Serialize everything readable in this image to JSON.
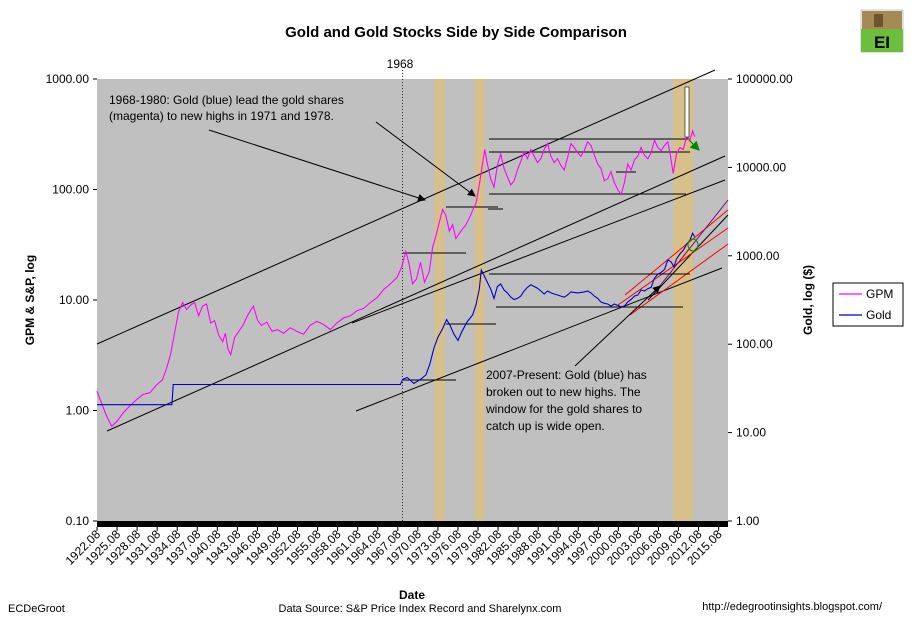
{
  "chart_data": {
    "type": "line",
    "title": "Gold and Gold Stocks Side by Side Comparison",
    "xlabel": "Date",
    "ylabel_left": "GPM & S&P, log",
    "ylabel_right": "Gold, log ($)",
    "x_range": [
      1922.6,
      2017.0
    ],
    "ylim_left": [
      0.1,
      1000
    ],
    "ylim_right": [
      1,
      100000
    ],
    "log_scale": true,
    "y_ticks_left": [
      "1000.00",
      "100.00",
      "10.00",
      "1.00",
      "0.10"
    ],
    "y_ticks_right": [
      "100000.00",
      "10000.00",
      "1000.00",
      "100.00",
      "10.00",
      "1.00"
    ],
    "x_ticks": [
      "1922.08",
      "1925.08",
      "1928.08",
      "1931.08",
      "1934.08",
      "1937.08",
      "1940.08",
      "1943.08",
      "1946.08",
      "1949.08",
      "1952.08",
      "1955.08",
      "1958.08",
      "1961.08",
      "1964.08",
      "1967.08",
      "1970.08",
      "1973.08",
      "1976.08",
      "1979.08",
      "1982.08",
      "1985.08",
      "1988.08",
      "1991.08",
      "1994.08",
      "1997.08",
      "2000.08",
      "2003.08",
      "2006.08",
      "2009.08",
      "2012.08",
      "2015.08"
    ],
    "vline_label": "1968",
    "legend_placement": "right",
    "series": [
      {
        "name": "GPM",
        "color": "#ff00ff",
        "axis": "left",
        "points": [
          [
            1922.6,
            1.5
          ],
          [
            1923.2,
            1.2
          ],
          [
            1924.0,
            0.9
          ],
          [
            1924.8,
            0.72
          ],
          [
            1925.6,
            0.8
          ],
          [
            1926.5,
            0.95
          ],
          [
            1927.5,
            1.1
          ],
          [
            1928.5,
            1.25
          ],
          [
            1929.5,
            1.4
          ],
          [
            1930.5,
            1.45
          ],
          [
            1931.5,
            1.7
          ],
          [
            1932.4,
            1.9
          ],
          [
            1933.0,
            2.4
          ],
          [
            1933.6,
            3.2
          ],
          [
            1934.2,
            5.0
          ],
          [
            1934.8,
            7.8
          ],
          [
            1935.4,
            9.5
          ],
          [
            1936.0,
            8.2
          ],
          [
            1936.6,
            9.0
          ],
          [
            1937.2,
            9.5
          ],
          [
            1937.8,
            7.2
          ],
          [
            1938.4,
            8.8
          ],
          [
            1939.0,
            9.2
          ],
          [
            1939.6,
            6.2
          ],
          [
            1940.2,
            6.5
          ],
          [
            1940.8,
            4.8
          ],
          [
            1941.4,
            4.2
          ],
          [
            1941.8,
            5.0
          ],
          [
            1942.2,
            3.6
          ],
          [
            1942.6,
            3.2
          ],
          [
            1943.2,
            4.6
          ],
          [
            1943.8,
            5.2
          ],
          [
            1944.5,
            6.0
          ],
          [
            1945.2,
            7.4
          ],
          [
            1946.0,
            8.8
          ],
          [
            1946.6,
            6.6
          ],
          [
            1947.2,
            5.9
          ],
          [
            1948.0,
            6.3
          ],
          [
            1948.8,
            5.2
          ],
          [
            1949.6,
            5.4
          ],
          [
            1950.5,
            5.0
          ],
          [
            1951.5,
            5.6
          ],
          [
            1952.5,
            5.2
          ],
          [
            1953.5,
            4.9
          ],
          [
            1954.5,
            5.9
          ],
          [
            1955.5,
            6.4
          ],
          [
            1956.5,
            6.0
          ],
          [
            1957.5,
            5.4
          ],
          [
            1958.5,
            6.2
          ],
          [
            1959.5,
            6.9
          ],
          [
            1960.5,
            7.2
          ],
          [
            1961.5,
            8.0
          ],
          [
            1962.5,
            8.4
          ],
          [
            1963.5,
            9.5
          ],
          [
            1964.5,
            10.5
          ],
          [
            1965.5,
            12.5
          ],
          [
            1966.5,
            14.0
          ],
          [
            1967.5,
            16.0
          ],
          [
            1968.2,
            20.0
          ],
          [
            1968.8,
            27.5
          ],
          [
            1969.3,
            21.0
          ],
          [
            1969.8,
            14.0
          ],
          [
            1970.4,
            15.5
          ],
          [
            1971.0,
            22.0
          ],
          [
            1971.6,
            14.5
          ],
          [
            1972.3,
            18.0
          ],
          [
            1972.8,
            30.0
          ],
          [
            1973.3,
            38.0
          ],
          [
            1973.8,
            50.0
          ],
          [
            1974.3,
            66.0
          ],
          [
            1974.8,
            58.0
          ],
          [
            1975.3,
            42.0
          ],
          [
            1975.8,
            48.0
          ],
          [
            1976.3,
            36.0
          ],
          [
            1976.8,
            40.0
          ],
          [
            1977.3,
            44.0
          ],
          [
            1977.8,
            48.0
          ],
          [
            1978.3,
            55.0
          ],
          [
            1978.8,
            65.0
          ],
          [
            1979.3,
            75.0
          ],
          [
            1979.8,
            110.0
          ],
          [
            1980.2,
            160.0
          ],
          [
            1980.6,
            230.0
          ],
          [
            1981.0,
            170.0
          ],
          [
            1981.5,
            125.0
          ],
          [
            1982.0,
            105.0
          ],
          [
            1982.5,
            165.0
          ],
          [
            1983.0,
            210.0
          ],
          [
            1983.5,
            155.0
          ],
          [
            1984.0,
            130.0
          ],
          [
            1984.5,
            110.0
          ],
          [
            1985.0,
            120.0
          ],
          [
            1985.5,
            150.0
          ],
          [
            1986.0,
            180.0
          ],
          [
            1986.5,
            220.0
          ],
          [
            1987.0,
            190.0
          ],
          [
            1987.5,
            230.0
          ],
          [
            1988.0,
            200.0
          ],
          [
            1988.5,
            175.0
          ],
          [
            1989.0,
            190.0
          ],
          [
            1989.5,
            230.0
          ],
          [
            1990.0,
            260.0
          ],
          [
            1990.5,
            200.0
          ],
          [
            1991.0,
            175.0
          ],
          [
            1991.5,
            190.0
          ],
          [
            1992.0,
            165.0
          ],
          [
            1992.5,
            150.0
          ],
          [
            1993.0,
            195.0
          ],
          [
            1993.5,
            260.0
          ],
          [
            1994.0,
            240.0
          ],
          [
            1994.5,
            215.0
          ],
          [
            1995.0,
            200.0
          ],
          [
            1995.5,
            225.0
          ],
          [
            1996.0,
            270.0
          ],
          [
            1996.5,
            250.0
          ],
          [
            1997.0,
            205.0
          ],
          [
            1997.5,
            170.0
          ],
          [
            1998.0,
            155.0
          ],
          [
            1998.5,
            120.0
          ],
          [
            1999.0,
            125.0
          ],
          [
            1999.5,
            145.0
          ],
          [
            2000.0,
            115.0
          ],
          [
            2000.5,
            100.0
          ],
          [
            2001.0,
            90.0
          ],
          [
            2001.5,
            115.0
          ],
          [
            2002.0,
            170.0
          ],
          [
            2002.5,
            150.0
          ],
          [
            2003.0,
            185.0
          ],
          [
            2003.5,
            200.0
          ],
          [
            2004.0,
            240.0
          ],
          [
            2004.5,
            205.0
          ],
          [
            2005.0,
            190.0
          ],
          [
            2005.5,
            215.0
          ],
          [
            2006.0,
            280.0
          ],
          [
            2006.5,
            240.0
          ],
          [
            2007.0,
            225.0
          ],
          [
            2007.5,
            250.0
          ],
          [
            2008.0,
            270.0
          ],
          [
            2008.4,
            200.0
          ],
          [
            2008.8,
            140.0
          ],
          [
            2009.3,
            210.0
          ],
          [
            2009.8,
            240.0
          ],
          [
            2010.3,
            230.0
          ],
          [
            2010.8,
            300.0
          ],
          [
            2011.3,
            280.0
          ],
          [
            2011.7,
            340.0
          ],
          [
            2012.0,
            300.0
          ]
        ]
      },
      {
        "name": "Gold",
        "color": "#0000cc",
        "axis": "right",
        "points": [
          [
            1922.6,
            20.7
          ],
          [
            1933.8,
            20.7
          ],
          [
            1934.0,
            35.0
          ],
          [
            1968.0,
            35.0
          ],
          [
            1968.3,
            40.0
          ],
          [
            1969.0,
            42.0
          ],
          [
            1970.0,
            36.0
          ],
          [
            1971.0,
            40.0
          ],
          [
            1971.8,
            45.0
          ],
          [
            1972.4,
            60.0
          ],
          [
            1973.0,
            90.0
          ],
          [
            1973.6,
            120.0
          ],
          [
            1974.3,
            150.0
          ],
          [
            1974.9,
            190.0
          ],
          [
            1975.4,
            165.0
          ],
          [
            1976.0,
            130.0
          ],
          [
            1976.6,
            110.0
          ],
          [
            1977.2,
            140.0
          ],
          [
            1978.0,
            180.0
          ],
          [
            1978.8,
            215.0
          ],
          [
            1979.3,
            280.0
          ],
          [
            1979.8,
            420.0
          ],
          [
            1980.1,
            690.0
          ],
          [
            1980.5,
            600.0
          ],
          [
            1981.0,
            500.0
          ],
          [
            1981.5,
            420.0
          ],
          [
            1982.0,
            330.0
          ],
          [
            1982.5,
            450.0
          ],
          [
            1983.0,
            480.0
          ],
          [
            1983.5,
            410.0
          ],
          [
            1984.0,
            380.0
          ],
          [
            1984.5,
            340.0
          ],
          [
            1985.0,
            320.0
          ],
          [
            1985.5,
            330.0
          ],
          [
            1986.0,
            350.0
          ],
          [
            1986.5,
            400.0
          ],
          [
            1987.0,
            440.0
          ],
          [
            1987.5,
            470.0
          ],
          [
            1988.0,
            450.0
          ],
          [
            1988.5,
            430.0
          ],
          [
            1989.0,
            400.0
          ],
          [
            1989.5,
            370.0
          ],
          [
            1990.0,
            400.0
          ],
          [
            1990.5,
            380.0
          ],
          [
            1991.0,
            370.0
          ],
          [
            1991.5,
            360.0
          ],
          [
            1992.0,
            350.0
          ],
          [
            1992.5,
            340.0
          ],
          [
            1993.0,
            360.0
          ],
          [
            1993.5,
            390.0
          ],
          [
            1994.0,
            385.0
          ],
          [
            1994.5,
            380.0
          ],
          [
            1995.0,
            385.0
          ],
          [
            1995.5,
            390.0
          ],
          [
            1996.0,
            400.0
          ],
          [
            1996.5,
            380.0
          ],
          [
            1997.0,
            350.0
          ],
          [
            1997.5,
            330.0
          ],
          [
            1998.0,
            300.0
          ],
          [
            1998.5,
            290.0
          ],
          [
            1999.0,
            285.0
          ],
          [
            1999.5,
            270.0
          ],
          [
            2000.0,
            285.0
          ],
          [
            2000.5,
            275.0
          ],
          [
            2001.0,
            265.0
          ],
          [
            2001.5,
            270.0
          ],
          [
            2002.0,
            300.0
          ],
          [
            2002.5,
            320.0
          ],
          [
            2003.0,
            350.0
          ],
          [
            2003.5,
            360.0
          ],
          [
            2004.0,
            410.0
          ],
          [
            2004.5,
            400.0
          ],
          [
            2005.0,
            425.0
          ],
          [
            2005.5,
            440.0
          ],
          [
            2006.0,
            560.0
          ],
          [
            2006.5,
            620.0
          ],
          [
            2007.0,
            650.0
          ],
          [
            2007.5,
            700.0
          ],
          [
            2008.0,
            900.0
          ],
          [
            2008.5,
            850.0
          ],
          [
            2008.9,
            750.0
          ],
          [
            2009.3,
            920.0
          ],
          [
            2009.8,
            1050.0
          ],
          [
            2010.3,
            1150.0
          ],
          [
            2010.8,
            1350.0
          ],
          [
            2011.3,
            1500.0
          ],
          [
            2011.7,
            1800.0
          ],
          [
            2012.0,
            1650.0
          ]
        ]
      }
    ],
    "annotations": [
      "1968-1980:  Gold (blue) lead the gold shares",
      "(magenta) to new highs in 1971 and 1978.",
      "2007-Present:  Gold (blue) has",
      "broken out to new highs.  The",
      "window for the gold shares to",
      "catch up is wide open."
    ],
    "logo_text": "EI",
    "footer_left": "ECDeGroot",
    "footer_center": "Data Source: S&P Price Index Record and Sharelynx.com",
    "footer_right": "http://edegrootinsights.blogspot.com/",
    "colors": {
      "plot_bg": "#c0c0c0",
      "shade": "#d8c08a",
      "gpm": "#ff00ff",
      "gold": "#0000cc",
      "logo_green": "#6cbf3c"
    }
  }
}
